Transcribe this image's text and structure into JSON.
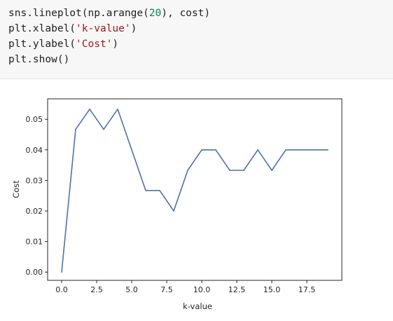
{
  "code": {
    "lines": [
      [
        {
          "t": "plain",
          "v": "sns.lineplot(np.arange("
        },
        {
          "t": "num",
          "v": "20"
        },
        {
          "t": "plain",
          "v": "), cost)"
        }
      ],
      [
        {
          "t": "plain",
          "v": "plt.xlabel("
        },
        {
          "t": "str",
          "v": "'k-value'"
        },
        {
          "t": "plain",
          "v": ")"
        }
      ],
      [
        {
          "t": "plain",
          "v": "plt.ylabel("
        },
        {
          "t": "str",
          "v": "'Cost'"
        },
        {
          "t": "plain",
          "v": ")"
        }
      ],
      [
        {
          "t": "plain",
          "v": "plt.show()"
        }
      ]
    ]
  },
  "chart_data": {
    "type": "line",
    "title": "",
    "xlabel": "k-value",
    "ylabel": "Cost",
    "x": [
      0,
      1,
      2,
      3,
      4,
      5,
      6,
      7,
      8,
      9,
      10,
      11,
      12,
      13,
      14,
      15,
      16,
      17,
      18,
      19
    ],
    "series": [
      {
        "values": [
          0.0,
          0.0467,
          0.0533,
          0.0467,
          0.0533,
          0.04,
          0.0267,
          0.0267,
          0.02,
          0.0333,
          0.04,
          0.04,
          0.0333,
          0.0333,
          0.04,
          0.0333,
          0.04,
          0.04,
          0.04,
          0.04
        ],
        "color": "#4c72b0"
      }
    ],
    "xlim": [
      -1,
      20
    ],
    "ylim": [
      -0.0027,
      0.0567
    ],
    "xticks": [
      "0.0",
      "2.5",
      "5.0",
      "7.5",
      "10.0",
      "12.5",
      "15.0",
      "17.5"
    ],
    "xtick_values": [
      0,
      2.5,
      5,
      7.5,
      10,
      12.5,
      15,
      17.5
    ],
    "yticks": [
      "0.00",
      "0.01",
      "0.02",
      "0.03",
      "0.04",
      "0.05"
    ],
    "ytick_values": [
      0,
      0.01,
      0.02,
      0.03,
      0.04,
      0.05
    ],
    "grid": false,
    "legend": false
  }
}
